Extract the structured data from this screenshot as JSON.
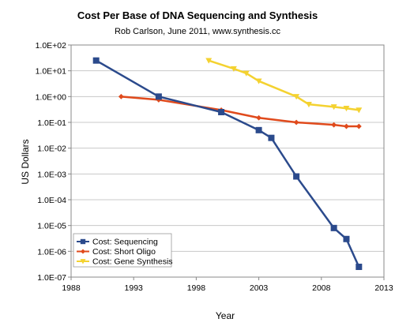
{
  "chart_data": {
    "type": "line",
    "title": "Cost Per Base of DNA Sequencing and Synthesis",
    "subtitle": "Rob Carlson, June 2011, www.synthesis.cc",
    "xlabel": "Year",
    "ylabel": "US Dollars",
    "xlim": [
      1988,
      2013
    ],
    "x_ticks": [
      "1988",
      "1993",
      "1998",
      "2003",
      "2008",
      "2013"
    ],
    "y_scale": "log",
    "ylim": [
      1e-07,
      100
    ],
    "y_ticks": [
      "1.0E+02",
      "1.0E+01",
      "1.0E+00",
      "1.0E-01",
      "1.0E-02",
      "1.0E-03",
      "1.0E-04",
      "1.0E-05",
      "1.0E-06",
      "1.0E-07"
    ],
    "grid": "horizontal",
    "legend_position": "bottom-left",
    "series": [
      {
        "name": "Cost: Sequencing",
        "color": "#2b4a8c",
        "marker": "square",
        "x": [
          1990,
          1995,
          2000,
          2003,
          2004,
          2006,
          2009,
          2010,
          2011
        ],
        "y": [
          25,
          1,
          0.25,
          0.05,
          0.025,
          0.0008,
          8e-06,
          3e-06,
          2.5e-07
        ]
      },
      {
        "name": "Cost: Short Oligo",
        "color": "#e04a1c",
        "marker": "diamond",
        "x": [
          1992,
          1995,
          2000,
          2003,
          2006,
          2009,
          2010,
          2011
        ],
        "y": [
          1,
          0.75,
          0.3,
          0.15,
          0.1,
          0.08,
          0.07,
          0.07
        ]
      },
      {
        "name": "Cost: Gene Synthesis",
        "color": "#f4d230",
        "marker": "triangle-down",
        "x": [
          1999,
          2001,
          2002,
          2003,
          2006,
          2007,
          2009,
          2010,
          2011
        ],
        "y": [
          25,
          12,
          8,
          4,
          1,
          0.5,
          0.4,
          0.35,
          0.3
        ]
      }
    ]
  }
}
